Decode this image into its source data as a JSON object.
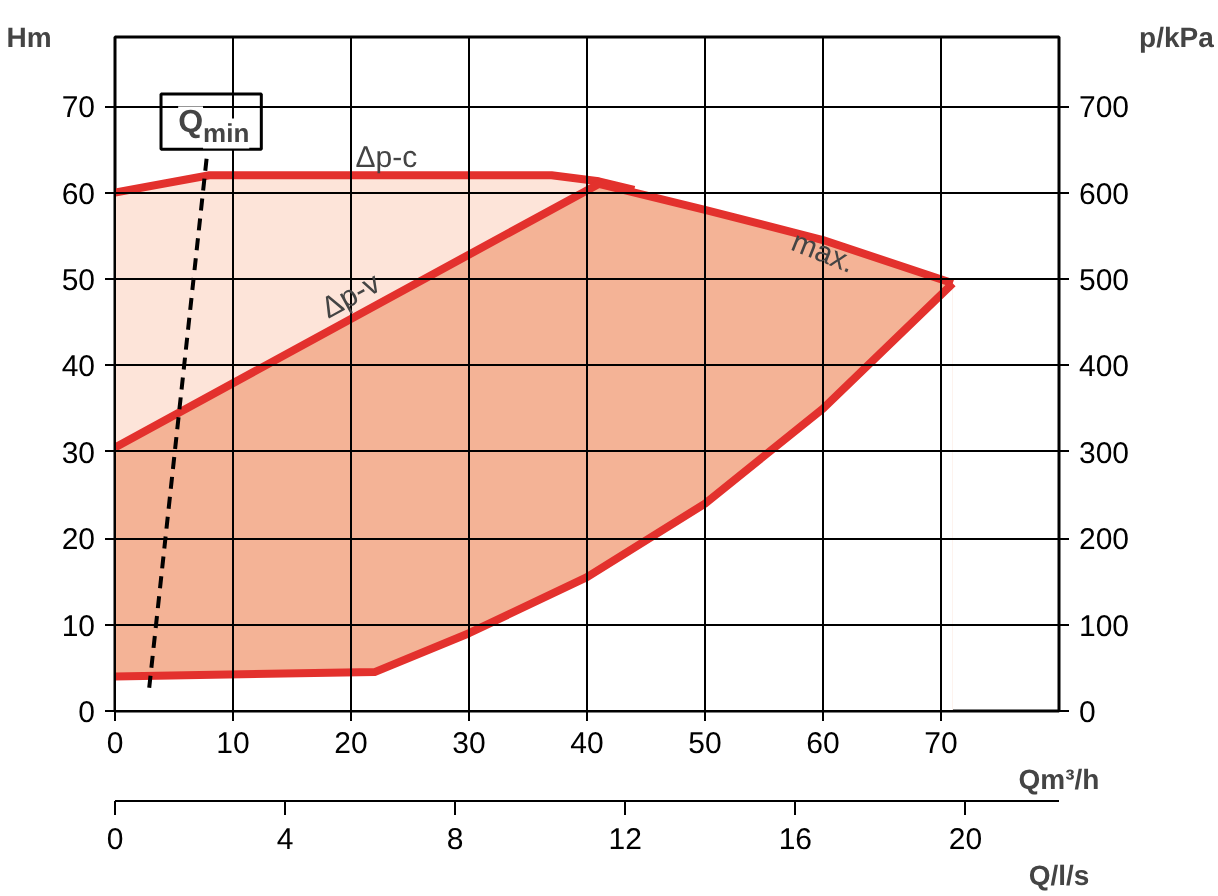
{
  "chart_data": {
    "type": "line",
    "xlabel": "Qm³/h",
    "ylabel": "Hm",
    "y2label": "p/kPa",
    "x2label": "Q/l/s",
    "xlim": [
      0,
      80
    ],
    "xticks": [
      0,
      10,
      20,
      30,
      40,
      50,
      60,
      70
    ],
    "ylim": [
      0,
      78
    ],
    "yticks": [
      0,
      10,
      20,
      30,
      40,
      50,
      60,
      70
    ],
    "y2lim": [
      0,
      780
    ],
    "y2ticks": [
      0,
      100,
      200,
      300,
      400,
      500,
      600,
      700
    ],
    "x2lim": [
      0,
      22.2
    ],
    "x2ticks": [
      0,
      4,
      8,
      12,
      16,
      20
    ],
    "grid": true,
    "series": [
      {
        "type": "area",
        "color": "#fde4d9",
        "x": [
          0,
          8,
          37,
          41,
          44
        ],
        "values": [
          60,
          62,
          62,
          61.3,
          60.3
        ]
      },
      {
        "type": "area",
        "color": "#f4b396",
        "x": [
          0,
          41,
          50,
          60,
          71
        ],
        "values": [
          30.5,
          61,
          58,
          54.5,
          49.5
        ]
      },
      {
        "type": "area",
        "color": "#ffffff",
        "x": [
          0,
          22,
          30,
          40,
          50,
          60,
          71
        ],
        "values": [
          4,
          4.5,
          9,
          15.5,
          24,
          35,
          49.5
        ]
      },
      {
        "type": "line",
        "color": "#000000",
        "line_style": "dashed",
        "x": [
          2.9,
          7.8
        ],
        "values": [
          2.7,
          64.4
        ]
      }
    ],
    "annotations": [
      "Δp-c",
      "Δp-v",
      "max.",
      "Q$_{min}$"
    ]
  }
}
